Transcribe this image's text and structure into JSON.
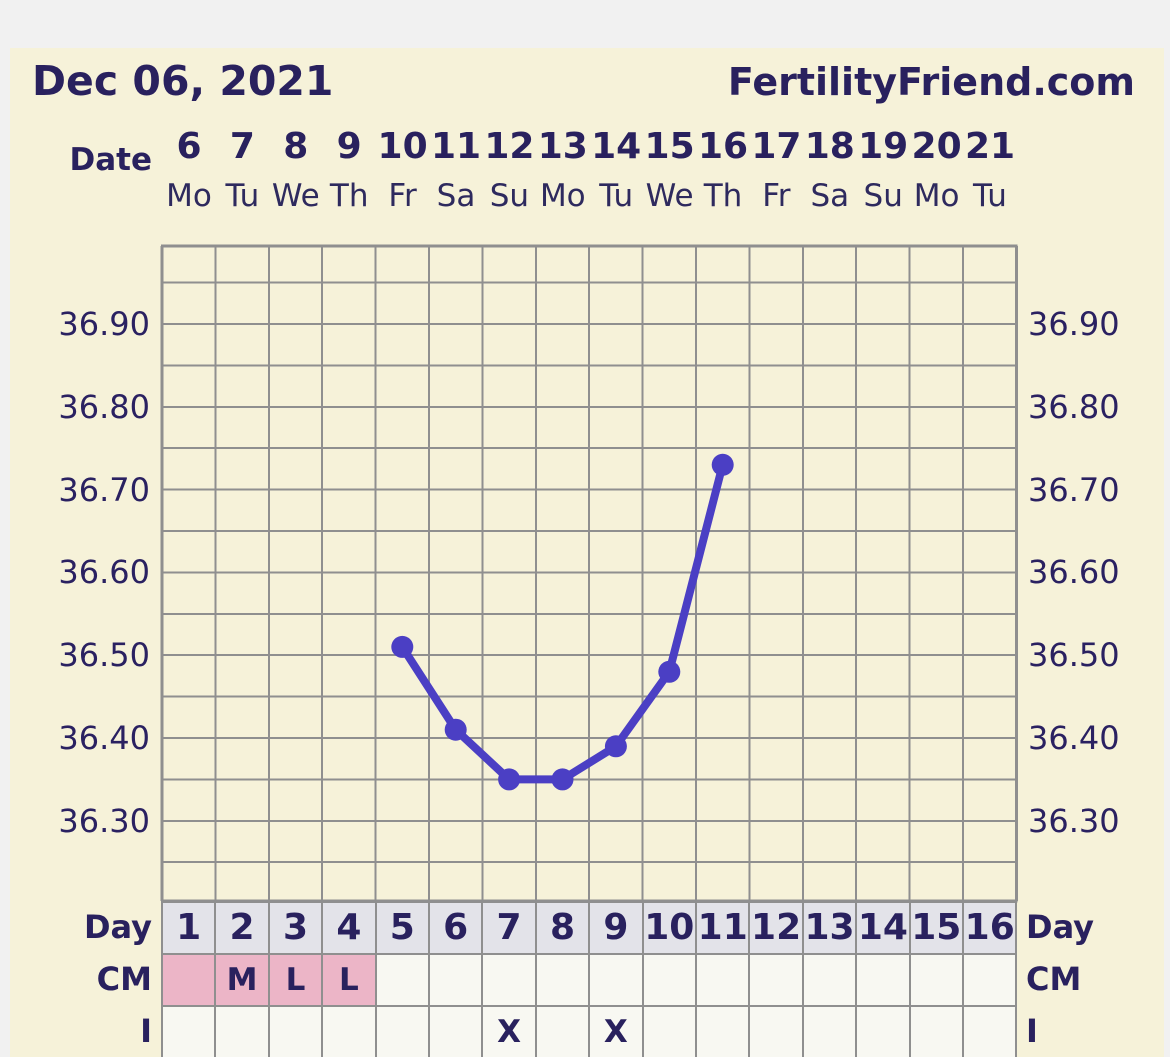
{
  "header": {
    "date": "Dec 06, 2021",
    "site": "FertilityFriend.com"
  },
  "date_header": {
    "label": "Date",
    "days": [
      {
        "date": "6",
        "weekday": "Mo"
      },
      {
        "date": "7",
        "weekday": "Tu"
      },
      {
        "date": "8",
        "weekday": "We"
      },
      {
        "date": "9",
        "weekday": "Th"
      },
      {
        "date": "10",
        "weekday": "Fr"
      },
      {
        "date": "11",
        "weekday": "Sa"
      },
      {
        "date": "12",
        "weekday": "Su"
      },
      {
        "date": "13",
        "weekday": "Mo"
      },
      {
        "date": "14",
        "weekday": "Tu"
      },
      {
        "date": "15",
        "weekday": "We"
      },
      {
        "date": "16",
        "weekday": "Th"
      },
      {
        "date": "17",
        "weekday": "Fr"
      },
      {
        "date": "18",
        "weekday": "Sa"
      },
      {
        "date": "19",
        "weekday": "Su"
      },
      {
        "date": "20",
        "weekday": "Mo"
      },
      {
        "date": "21",
        "weekday": "Tu"
      }
    ]
  },
  "chart_data": {
    "type": "line",
    "x_cycle_days": [
      5,
      6,
      7,
      8,
      9,
      10,
      11
    ],
    "temperatures_c": [
      36.51,
      36.41,
      36.35,
      36.35,
      36.39,
      36.48,
      36.73
    ],
    "x_axis_cycle_day_range": [
      1,
      16
    ],
    "y_tick_labels": [
      "36.90",
      "36.80",
      "36.70",
      "36.60",
      "36.50",
      "36.40",
      "36.30"
    ],
    "y_gridline_step": 0.05,
    "y_label_step": 0.1,
    "y_top_label": 36.9,
    "grid": "on",
    "legend": "none",
    "line_color": "#4b3fc4"
  },
  "bottom": {
    "day_row": {
      "label": "Day",
      "values": [
        "1",
        "2",
        "3",
        "4",
        "5",
        "6",
        "7",
        "8",
        "9",
        "10",
        "11",
        "12",
        "13",
        "14",
        "15",
        "16"
      ]
    },
    "cm_row": {
      "label": "CM",
      "cells": [
        {
          "text": "",
          "pink": true
        },
        {
          "text": "M",
          "pink": true
        },
        {
          "text": "L",
          "pink": true
        },
        {
          "text": "L",
          "pink": true
        },
        {
          "text": "",
          "pink": false
        },
        {
          "text": "",
          "pink": false
        },
        {
          "text": "",
          "pink": false
        },
        {
          "text": "",
          "pink": false
        },
        {
          "text": "",
          "pink": false
        },
        {
          "text": "",
          "pink": false
        },
        {
          "text": "",
          "pink": false
        },
        {
          "text": "",
          "pink": false
        },
        {
          "text": "",
          "pink": false
        },
        {
          "text": "",
          "pink": false
        },
        {
          "text": "",
          "pink": false
        },
        {
          "text": "",
          "pink": false
        }
      ]
    },
    "i_row": {
      "label": "I",
      "cells": [
        "",
        "",
        "",
        "",
        "",
        "",
        "X",
        "",
        "X",
        "",
        "",
        "",
        "",
        "",
        "",
        ""
      ]
    }
  },
  "colors": {
    "page_bg": "#f1f1f1",
    "panel_bg": "#f6f2d9",
    "text_navy": "#29215e",
    "grid_line": "#8f8f8f",
    "line_purple": "#4b3fc4",
    "day_cell_bg": "#e3e3e9",
    "cm_pink": "#ecb5c7",
    "plain_cell_bg": "#f8f8f2"
  }
}
